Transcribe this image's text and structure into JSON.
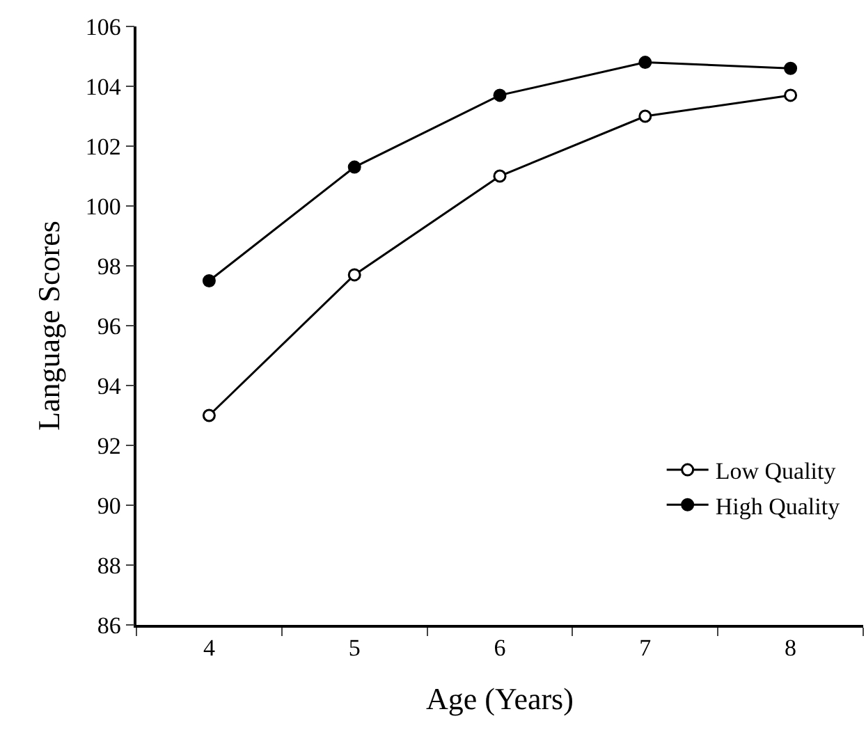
{
  "chart_data": {
    "type": "line",
    "xlabel": "Age (Years)",
    "ylabel": "Language Scores",
    "categories": [
      "4",
      "5",
      "6",
      "7",
      "8"
    ],
    "series": [
      {
        "name": "Low Quality",
        "color": "#000000",
        "marker": "circle-open",
        "values": [
          93.0,
          97.7,
          101.0,
          103.0,
          103.7
        ]
      },
      {
        "name": "High Quality",
        "color": "#000000",
        "marker": "circle",
        "values": [
          97.5,
          101.3,
          103.7,
          104.8,
          104.6
        ]
      }
    ],
    "ylim": [
      86,
      106
    ],
    "yticks": [
      86,
      88,
      90,
      92,
      94,
      96,
      98,
      100,
      102,
      104,
      106
    ],
    "legend": "bottom right",
    "line_style": "solid"
  }
}
